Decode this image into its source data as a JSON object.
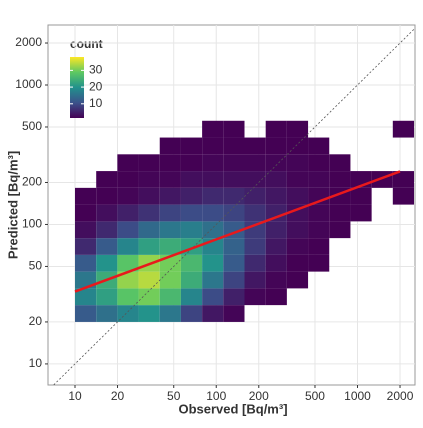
{
  "chart_data": {
    "type": "bin2d",
    "x_label": "Observed [Bq/m³]",
    "y_label": "Predicted [Bq/m³]",
    "x_log": true,
    "y_log": true,
    "grid": true,
    "xlim": [
      6.44,
      2553
    ],
    "ylim": [
      7.06,
      2693
    ],
    "xticks": [
      10,
      20,
      50,
      100,
      200,
      500,
      1000,
      2000
    ],
    "yticks": [
      10,
      20,
      50,
      100,
      200,
      500,
      1000,
      2000
    ],
    "x_edges": [
      10,
      14.13,
      19.95,
      28.18,
      39.81,
      56.23,
      79.43,
      112.2,
      158.5,
      223.9,
      316.2,
      446.7,
      631.0,
      891.3,
      1259,
      1778,
      2512
    ],
    "y_edges": [
      20,
      26.4,
      34.8,
      45.9,
      60.5,
      79.8,
      105.2,
      138.8,
      183.0,
      241.4,
      318.4,
      419.9,
      553.9
    ],
    "counts": [
      [
        12,
        15,
        18,
        20,
        16,
        9,
        4,
        2,
        null,
        null,
        null,
        null,
        null,
        null,
        null,
        null
      ],
      [
        18,
        22,
        28,
        30,
        26,
        18,
        10,
        5,
        2,
        1,
        null,
        null,
        null,
        null,
        null,
        null
      ],
      [
        16,
        24,
        32,
        34,
        30,
        24,
        16,
        9,
        4,
        2,
        1,
        null,
        null,
        null,
        null,
        null
      ],
      [
        12,
        20,
        28,
        32,
        30,
        26,
        20,
        12,
        6,
        3,
        1,
        1,
        null,
        null,
        null,
        null
      ],
      [
        6,
        12,
        18,
        22,
        24,
        22,
        18,
        13,
        8,
        4,
        2,
        1,
        null,
        null,
        null,
        null
      ],
      [
        3,
        6,
        10,
        14,
        16,
        17,
        15,
        12,
        8,
        5,
        3,
        2,
        1,
        null,
        null,
        null
      ],
      [
        1,
        3,
        5,
        7,
        9,
        10,
        10,
        9,
        7,
        5,
        3,
        2,
        1,
        1,
        null,
        null
      ],
      [
        1,
        1,
        2,
        3,
        4,
        5,
        6,
        6,
        5,
        4,
        3,
        2,
        1,
        1,
        null,
        1
      ],
      [
        null,
        1,
        1,
        2,
        2,
        3,
        3,
        3,
        3,
        3,
        2,
        2,
        1,
        1,
        1,
        1
      ],
      [
        null,
        null,
        1,
        1,
        1,
        1,
        2,
        2,
        2,
        2,
        2,
        1,
        1,
        null,
        null,
        null
      ],
      [
        null,
        null,
        null,
        null,
        1,
        1,
        1,
        1,
        1,
        1,
        1,
        1,
        null,
        null,
        null,
        null
      ],
      [
        null,
        null,
        null,
        null,
        null,
        null,
        1,
        1,
        null,
        1,
        1,
        null,
        null,
        null,
        null,
        1
      ]
    ],
    "fit": {
      "color": "#e8191c",
      "x": [
        10,
        2000
      ],
      "y": [
        33,
        240
      ]
    },
    "legend": {
      "title": "count",
      "lim": [
        1.5,
        38
      ],
      "ticks": [
        10,
        20,
        30
      ],
      "colormap": [
        "#440154",
        "#3b528b",
        "#21918c",
        "#5ec962",
        "#fde725"
      ]
    }
  }
}
